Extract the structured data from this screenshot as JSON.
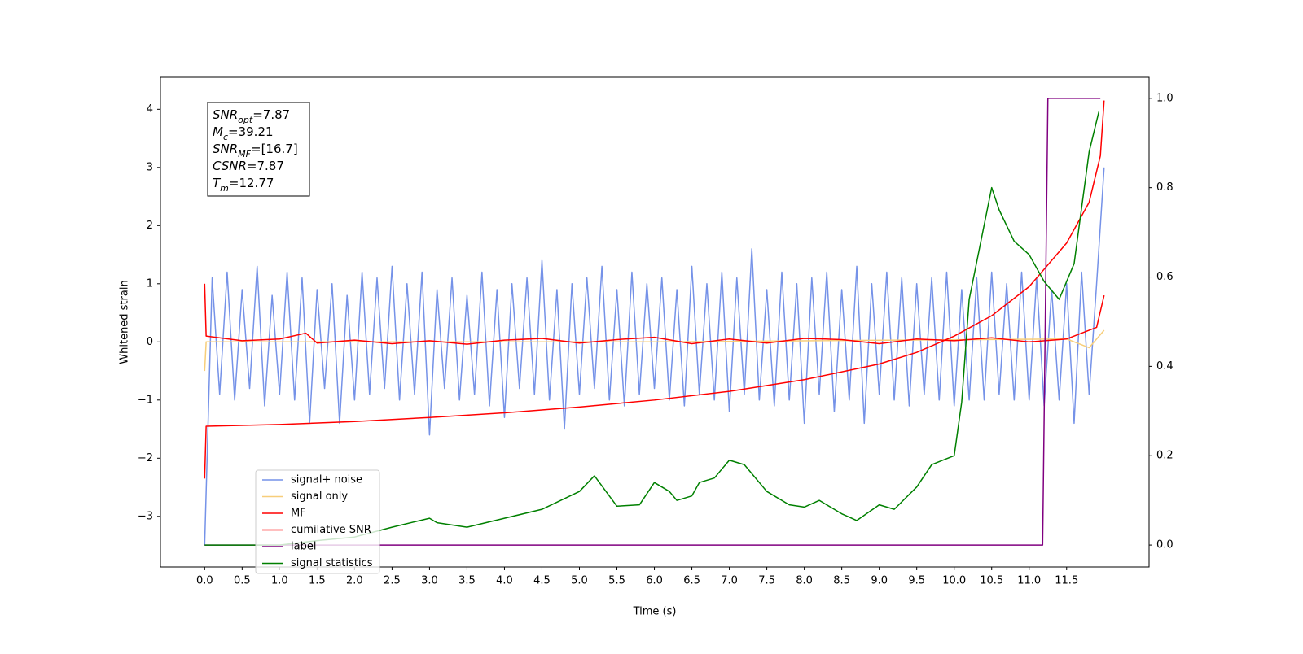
{
  "chart_data": {
    "type": "line",
    "xlabel": "Time (s)",
    "ylabel": "Whitened strain",
    "xlim": [
      -0.59,
      12.6
    ],
    "ylim": [
      -3.87,
      4.55
    ],
    "y2lim": [
      -0.049,
      1.047
    ],
    "xticks": [
      {
        "value": 0,
        "label": "0.0"
      },
      {
        "value": 0.5,
        "label": "0.5"
      },
      {
        "value": 1,
        "label": "1.0"
      },
      {
        "value": 1.5,
        "label": "1.5"
      },
      {
        "value": 2,
        "label": "2.0"
      },
      {
        "value": 2.5,
        "label": "2.5"
      },
      {
        "value": 3,
        "label": "3.0"
      },
      {
        "value": 3.5,
        "label": "3.5"
      },
      {
        "value": 4,
        "label": "4.0"
      },
      {
        "value": 4.5,
        "label": "4.5"
      },
      {
        "value": 5,
        "label": "5.0"
      },
      {
        "value": 5.5,
        "label": "5.5"
      },
      {
        "value": 6,
        "label": "6.0"
      },
      {
        "value": 6.5,
        "label": "6.5"
      },
      {
        "value": 7,
        "label": "7.0"
      },
      {
        "value": 7.5,
        "label": "7.5"
      },
      {
        "value": 8,
        "label": "8.0"
      },
      {
        "value": 8.5,
        "label": "8.5"
      },
      {
        "value": 9,
        "label": "9.0"
      },
      {
        "value": 9.5,
        "label": "9.5"
      },
      {
        "value": 10,
        "label": "10.0"
      },
      {
        "value": 10.5,
        "label": "10.5"
      },
      {
        "value": 11,
        "label": "11.0"
      },
      {
        "value": 11.5,
        "label": "11.5"
      }
    ],
    "yticks": [
      {
        "value": -3,
        "label": "−3"
      },
      {
        "value": -2,
        "label": "−2"
      },
      {
        "value": -1,
        "label": "−1"
      },
      0,
      1,
      2,
      3,
      4
    ],
    "y2ticks": [
      {
        "value": 0,
        "label": "0.0"
      },
      {
        "value": 0.2,
        "label": "0.2"
      },
      {
        "value": 0.4,
        "label": "0.4"
      },
      {
        "value": 0.6,
        "label": "0.6"
      },
      {
        "value": 0.8,
        "label": "0.8"
      },
      {
        "value": 1,
        "label": "1.0"
      }
    ],
    "x": [
      0,
      0.1,
      0.2,
      0.3,
      0.4,
      0.5,
      0.6,
      0.7,
      0.8,
      0.9,
      1,
      1.1,
      1.2,
      1.3,
      1.4,
      1.5,
      1.6,
      1.7,
      1.8,
      1.9,
      2,
      2.1,
      2.2,
      2.3,
      2.4,
      2.5,
      2.6,
      2.7,
      2.8,
      2.9,
      3,
      3.1,
      3.2,
      3.3,
      3.4,
      3.5,
      3.6,
      3.7,
      3.8,
      3.9,
      4,
      4.1,
      4.2,
      4.3,
      4.4,
      4.5,
      4.6,
      4.7,
      4.8,
      4.9,
      5,
      5.1,
      5.2,
      5.3,
      5.4,
      5.5,
      5.6,
      5.7,
      5.8,
      5.9,
      6,
      6.1,
      6.2,
      6.3,
      6.4,
      6.5,
      6.6,
      6.7,
      6.8,
      6.9,
      7,
      7.1,
      7.2,
      7.3,
      7.4,
      7.5,
      7.6,
      7.7,
      7.8,
      7.9,
      8,
      8.1,
      8.2,
      8.3,
      8.4,
      8.5,
      8.6,
      8.7,
      8.8,
      8.9,
      9,
      9.1,
      9.2,
      9.3,
      9.4,
      9.5,
      9.6,
      9.7,
      9.8,
      9.9,
      10,
      10.1,
      10.2,
      10.3,
      10.4,
      10.5,
      10.6,
      10.7,
      10.8,
      10.9,
      11,
      11.1,
      11.2,
      11.3,
      11.4,
      11.5,
      11.6,
      11.7,
      11.8,
      11.9,
      12
    ],
    "series": [
      {
        "name": "signal+ noise",
        "color": "#7592e8",
        "values": [
          -3.5,
          1.1,
          -0.9,
          1.2,
          -1.0,
          0.9,
          -0.8,
          1.3,
          -1.1,
          0.8,
          -0.9,
          1.2,
          -1.0,
          1.1,
          -1.4,
          0.9,
          -0.8,
          1.0,
          -1.4,
          0.8,
          -1.0,
          1.2,
          -0.9,
          1.1,
          -0.8,
          1.3,
          -1.0,
          1.0,
          -0.9,
          1.2,
          -1.6,
          0.9,
          -0.8,
          1.1,
          -1.0,
          0.8,
          -0.9,
          1.2,
          -1.1,
          0.9,
          -1.3,
          1.0,
          -0.8,
          1.1,
          -0.9,
          1.4,
          -1.0,
          0.9,
          -1.5,
          1.0,
          -0.9,
          1.1,
          -0.8,
          1.3,
          -1.0,
          0.9,
          -1.1,
          1.2,
          -0.9,
          1.0,
          -0.8,
          1.1,
          -1.0,
          0.9,
          -1.1,
          1.3,
          -0.9,
          1.0,
          -1.0,
          1.2,
          -1.2,
          1.1,
          -0.9,
          1.6,
          -1.0,
          0.9,
          -1.1,
          1.2,
          -1.0,
          1.0,
          -1.4,
          1.1,
          -0.9,
          1.2,
          -1.2,
          0.9,
          -1.0,
          1.3,
          -1.4,
          1.0,
          -0.9,
          1.2,
          -1.0,
          1.1,
          -1.1,
          1.0,
          -0.9,
          1.1,
          -1.0,
          1.2,
          -1.1,
          0.9,
          -1.0,
          1.1,
          -1.0,
          1.2,
          -0.9,
          1.0,
          -1.0,
          1.2,
          -1.0,
          1.1,
          -1.1,
          0.9,
          -1.0,
          1.0,
          -1.4,
          1.2,
          -0.9,
          1.0,
          3.0
        ]
      },
      {
        "name": "signal only",
        "color": "#f7ce7a",
        "x": [
          0,
          0.02,
          6,
          11.5,
          11.8,
          12
        ],
        "values": [
          -0.5,
          0,
          0,
          0.05,
          -0.1,
          0.2
        ]
      },
      {
        "name": "MF",
        "color": "#ff0000",
        "x": [
          0,
          0.02,
          0.5,
          1,
          1.35,
          1.5,
          2,
          2.5,
          3,
          3.5,
          4,
          4.5,
          5,
          5.5,
          6,
          6.5,
          7,
          7.5,
          8,
          8.5,
          9,
          9.5,
          10,
          10.5,
          11,
          11.5,
          11.9,
          12
        ],
        "values": [
          1.0,
          0.1,
          0.02,
          0.05,
          0.15,
          -0.02,
          0.03,
          -0.03,
          0.02,
          -0.04,
          0.03,
          0.06,
          -0.02,
          0.04,
          0.08,
          -0.03,
          0.05,
          -0.02,
          0.06,
          0.04,
          -0.03,
          0.05,
          0.02,
          0.07,
          0.0,
          0.05,
          0.25,
          0.8
        ]
      },
      {
        "name": "cumilative SNR",
        "color": "#ff0000",
        "x": [
          0,
          0.02,
          1,
          2,
          3,
          4,
          5,
          6,
          7,
          8,
          9,
          9.5,
          10,
          10.5,
          11,
          11.5,
          11.8,
          11.95,
          12
        ],
        "values": [
          -2.35,
          -1.45,
          -1.42,
          -1.37,
          -1.3,
          -1.22,
          -1.12,
          -1.0,
          -0.85,
          -0.65,
          -0.38,
          -0.18,
          0.1,
          0.45,
          0.95,
          1.7,
          2.4,
          3.2,
          4.15
        ]
      },
      {
        "name": "label",
        "color": "#800080",
        "axis": "y2",
        "x": [
          0,
          11.18,
          11.25,
          11.95
        ],
        "values": [
          0,
          0,
          1,
          1
        ]
      },
      {
        "name": "signal statistics",
        "color": "#008000",
        "axis": "y2",
        "x": [
          0,
          1,
          1.5,
          2,
          2.5,
          3,
          3.1,
          3.5,
          4,
          4.5,
          5,
          5.2,
          5.5,
          5.8,
          6,
          6.2,
          6.3,
          6.5,
          6.6,
          6.8,
          7,
          7.2,
          7.5,
          7.8,
          8,
          8.2,
          8.5,
          8.7,
          9,
          9.2,
          9.5,
          9.7,
          10,
          10.1,
          10.2,
          10.5,
          10.6,
          10.8,
          11,
          11.2,
          11.4,
          11.6,
          11.8,
          11.93
        ],
        "values": [
          0,
          0,
          0.01,
          0.018,
          0.04,
          0.06,
          0.05,
          0.04,
          0.06,
          0.08,
          0.12,
          0.155,
          0.087,
          0.09,
          0.14,
          0.12,
          0.1,
          0.11,
          0.14,
          0.15,
          0.19,
          0.18,
          0.12,
          0.09,
          0.085,
          0.1,
          0.07,
          0.055,
          0.09,
          0.08,
          0.13,
          0.18,
          0.2,
          0.32,
          0.55,
          0.8,
          0.75,
          0.68,
          0.65,
          0.59,
          0.55,
          0.63,
          0.88,
          0.97
        ]
      }
    ],
    "annotation": [
      {
        "main": "SNR",
        "sub": "opt",
        "rest": "=7.87"
      },
      {
        "main": "M",
        "sub": "c",
        "rest": "=39.21"
      },
      {
        "main": "SNR",
        "sub": "MF",
        "rest": "=[16.7]"
      },
      {
        "main": "CSNR",
        "rest": "=7.87"
      },
      {
        "main": "T",
        "sub": "m",
        "rest": "=12.77"
      }
    ],
    "legend": "lower left"
  }
}
